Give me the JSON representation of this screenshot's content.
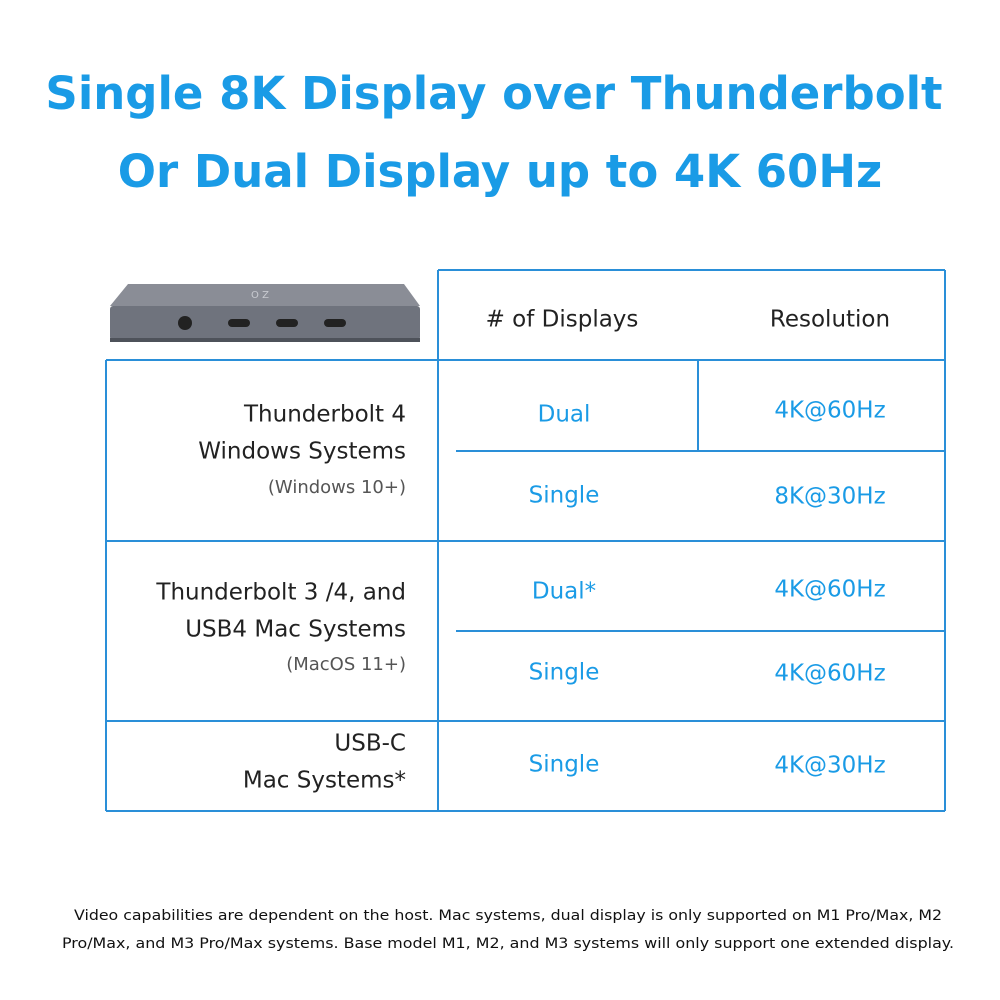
{
  "header": {
    "title_lines": [
      "Single 8K Display over Thunderbolt",
      "Or Dual Display up to 4K 60Hz"
    ]
  },
  "table": {
    "columns": [
      "# of Displays",
      "Resolution"
    ],
    "groups": [
      {
        "system_lines": [
          "Thunderbolt 4",
          "Windows Systems"
        ],
        "note": "(Windows 10+)",
        "rows": [
          [
            "Dual",
            "4K@60Hz"
          ],
          [
            "Single",
            "8K@30Hz"
          ]
        ]
      },
      {
        "system_lines": [
          "Thunderbolt 3 /4, and",
          "USB4 Mac Systems"
        ],
        "note": "(MacOS 11+)",
        "rows": [
          [
            "Dual*",
            "4K@60Hz"
          ],
          [
            "Single",
            "4K@60Hz"
          ]
        ]
      },
      {
        "system_lines": [
          "USB-C",
          "Mac Systems*"
        ],
        "rows": [
          [
            "Single",
            "4K@30Hz"
          ]
        ]
      }
    ]
  },
  "footnote_lines": [
    "Video capabilities are dependent on the host. Mac systems, dual display is only supported on M1 Pro/Max, M2",
    "Pro/Max, and M3 Pro/Max systems. Base model M1, M2, and M3 systems will only support one extended display."
  ]
}
